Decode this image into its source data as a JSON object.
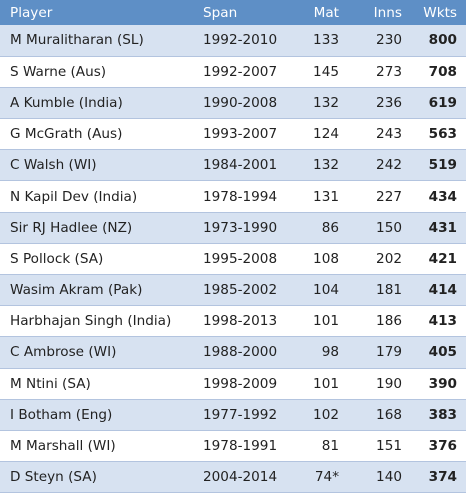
{
  "headers": {
    "player": "Player",
    "span": "Span",
    "mat": "Mat",
    "inns": "Inns",
    "wkts": "Wkts"
  },
  "rows": [
    {
      "player": "M Muralitharan (SL)",
      "span": "1992-2010",
      "mat": "133",
      "inns": "230",
      "wkts": "800"
    },
    {
      "player": "S Warne (Aus)",
      "span": "1992-2007",
      "mat": "145",
      "inns": "273",
      "wkts": "708"
    },
    {
      "player": "A Kumble (India)",
      "span": "1990-2008",
      "mat": "132",
      "inns": "236",
      "wkts": "619"
    },
    {
      "player": "G McGrath (Aus)",
      "span": "1993-2007",
      "mat": "124",
      "inns": "243",
      "wkts": "563"
    },
    {
      "player": "C Walsh (WI)",
      "span": "1984-2001",
      "mat": "132",
      "inns": "242",
      "wkts": "519"
    },
    {
      "player": "N Kapil Dev (India)",
      "span": "1978-1994",
      "mat": "131",
      "inns": "227",
      "wkts": "434"
    },
    {
      "player": "Sir RJ Hadlee (NZ)",
      "span": "1973-1990",
      "mat": "86",
      "inns": "150",
      "wkts": "431"
    },
    {
      "player": "S Pollock (SA)",
      "span": "1995-2008",
      "mat": "108",
      "inns": "202",
      "wkts": "421"
    },
    {
      "player": "Wasim Akram (Pak)",
      "span": "1985-2002",
      "mat": "104",
      "inns": "181",
      "wkts": "414"
    },
    {
      "player": "Harbhajan Singh (India)",
      "span": "1998-2013",
      "mat": "101",
      "inns": "186",
      "wkts": "413"
    },
    {
      "player": "C Ambrose (WI)",
      "span": "1988-2000",
      "mat": "98",
      "inns": "179",
      "wkts": "405"
    },
    {
      "player": "M Ntini (SA)",
      "span": "1998-2009",
      "mat": "101",
      "inns": "190",
      "wkts": "390"
    },
    {
      "player": "I Botham (Eng)",
      "span": "1977-1992",
      "mat": "102",
      "inns": "168",
      "wkts": "383"
    },
    {
      "player": "M Marshall (WI)",
      "span": "1978-1991",
      "mat": "81",
      "inns": "151",
      "wkts": "376"
    },
    {
      "player": "D Steyn (SA)",
      "span": "2004-2014",
      "mat": "74*",
      "inns": "140",
      "wkts": "374"
    }
  ]
}
